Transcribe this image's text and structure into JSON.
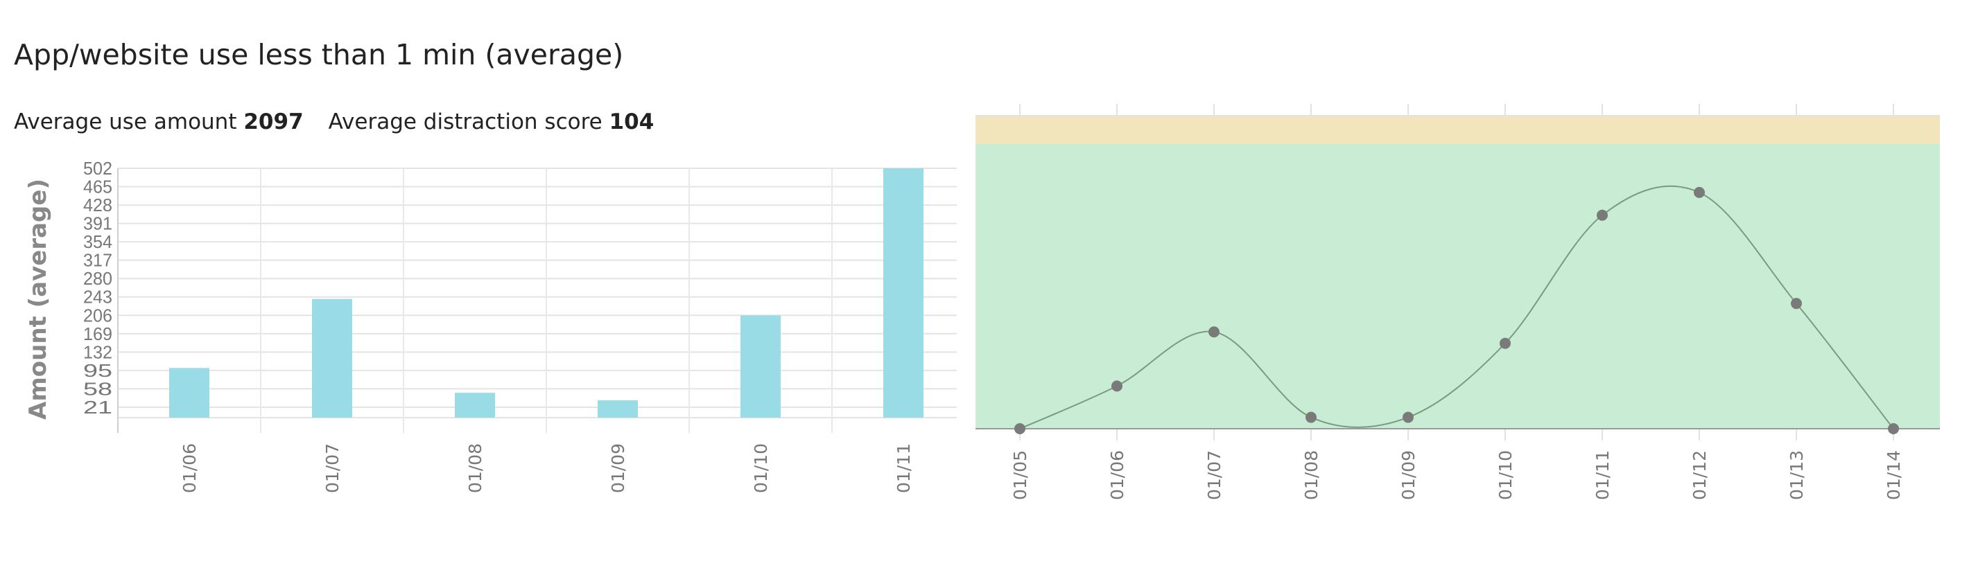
{
  "header": {
    "title": "App/website use less than 1 min (average)",
    "avg_use_label": "Average use amount",
    "avg_use_value": "2097",
    "avg_distraction_label": "Average distraction score",
    "avg_distraction_value": "104"
  },
  "chart_data": [
    {
      "type": "bar",
      "ylabel": "Amount (average)",
      "categories": [
        "01/06",
        "01/07",
        "01/08",
        "01/09",
        "01/10",
        "01/11"
      ],
      "values": [
        100,
        239,
        50,
        35,
        206,
        502
      ],
      "yticks": [
        21,
        58,
        95,
        132,
        169,
        206,
        243,
        280,
        317,
        354,
        391,
        428,
        465,
        502
      ],
      "ylim": [
        0,
        502
      ],
      "grid": true,
      "colors": {
        "bar": "#9adce6"
      }
    },
    {
      "type": "line",
      "smooth": true,
      "categories": [
        "01/05",
        "01/06",
        "01/07",
        "01/08",
        "01/09",
        "01/10",
        "01/11",
        "01/12",
        "01/13",
        "01/14"
      ],
      "values": [
        0,
        15,
        34,
        4,
        4,
        30,
        75,
        83,
        44,
        0
      ],
      "ylim": [
        0,
        100
      ],
      "y_axis_labels_shown": false,
      "bands": [
        {
          "from": 0,
          "to": 100,
          "color": "#c9ecd4"
        },
        {
          "from": 100,
          "to": 110,
          "color": "#f2e4bb"
        }
      ],
      "colors": {
        "line": "#7a9a82",
        "point": "#7a7a7a"
      }
    }
  ]
}
